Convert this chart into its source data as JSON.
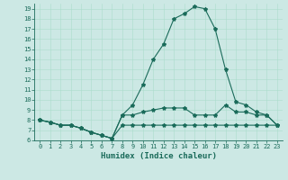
{
  "xlabel": "Humidex (Indice chaleur)",
  "bg_color": "#cce8e4",
  "line_color": "#1a6b5a",
  "xlim": [
    -0.5,
    23.5
  ],
  "ylim": [
    6,
    19.5
  ],
  "yticks": [
    6,
    7,
    8,
    9,
    10,
    11,
    12,
    13,
    14,
    15,
    16,
    17,
    18,
    19
  ],
  "xticks": [
    0,
    1,
    2,
    3,
    4,
    5,
    6,
    7,
    8,
    9,
    10,
    11,
    12,
    13,
    14,
    15,
    16,
    17,
    18,
    19,
    20,
    21,
    22,
    23
  ],
  "series": [
    {
      "x": [
        0,
        1,
        2,
        3,
        4,
        5,
        6,
        7,
        8,
        9,
        10,
        11,
        12,
        13,
        14,
        15,
        16,
        17,
        18,
        19,
        20,
        21,
        22,
        23
      ],
      "y": [
        8,
        7.8,
        7.5,
        7.5,
        7.2,
        6.8,
        6.5,
        6.2,
        7.5,
        7.5,
        7.5,
        7.5,
        7.5,
        7.5,
        7.5,
        7.5,
        7.5,
        7.5,
        7.5,
        7.5,
        7.5,
        7.5,
        7.5,
        7.5
      ]
    },
    {
      "x": [
        0,
        1,
        2,
        3,
        4,
        5,
        6,
        7,
        8,
        9,
        10,
        11,
        12,
        13,
        14,
        15,
        16,
        17,
        18,
        19,
        20,
        21,
        22,
        23
      ],
      "y": [
        8,
        7.8,
        7.5,
        7.5,
        7.2,
        6.8,
        6.5,
        6.2,
        8.5,
        8.5,
        8.8,
        9.0,
        9.2,
        9.2,
        9.2,
        8.5,
        8.5,
        8.5,
        9.5,
        8.8,
        8.8,
        8.5,
        8.5,
        7.5
      ]
    },
    {
      "x": [
        0,
        1,
        2,
        3,
        4,
        5,
        6,
        7,
        8,
        9,
        10,
        11,
        12,
        13,
        14,
        15,
        16,
        17,
        18,
        19,
        20,
        21,
        22,
        23
      ],
      "y": [
        8,
        7.8,
        7.5,
        7.5,
        7.2,
        6.8,
        6.5,
        6.2,
        8.5,
        9.5,
        11.5,
        14.0,
        15.5,
        18.0,
        18.5,
        19.2,
        19.0,
        17.0,
        13.0,
        9.8,
        9.5,
        8.8,
        8.5,
        7.5
      ]
    }
  ]
}
